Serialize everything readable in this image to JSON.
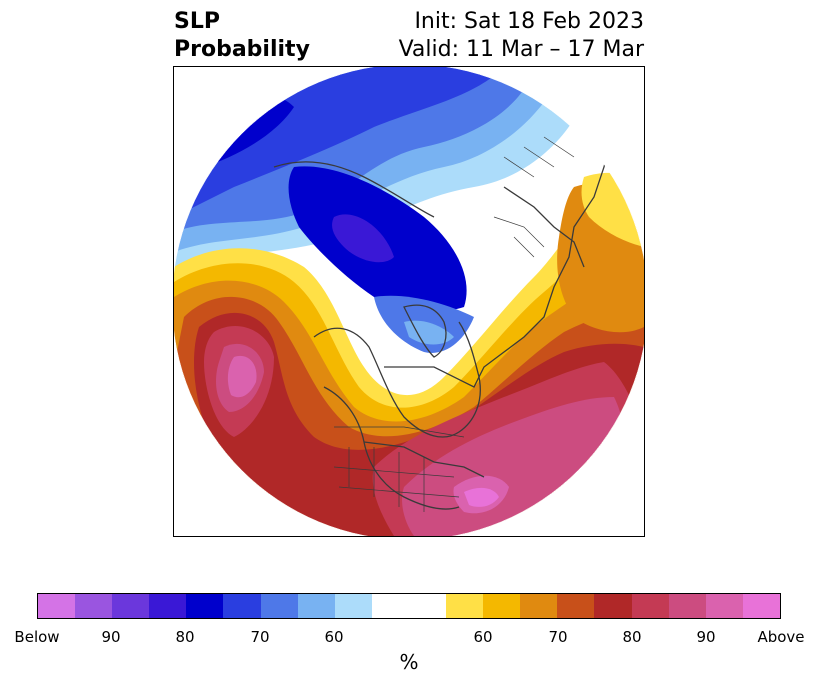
{
  "header": {
    "title_line1": "SLP",
    "title_line2": "Probability",
    "init_text": "Init: Sat 18 Feb 2023",
    "valid_text": "Valid: 11 Mar – 17 Mar"
  },
  "map": {
    "projection": "north-polar-stereographic",
    "fields": {
      "below_color_scale": [
        "#d473e6",
        "#9a55e0",
        "#6b37dc",
        "#3a18d6",
        "#0000cc",
        "#2a3ee0",
        "#4e78e8",
        "#78b2f2",
        "#acdcfa"
      ],
      "neutral": "#ffffff",
      "above_color_scale": [
        "#ffe046",
        "#f4b800",
        "#e08a10",
        "#c8501a",
        "#b02828",
        "#c43a54",
        "#cc4c80",
        "#da62ae",
        "#e872d8"
      ]
    }
  },
  "colorbar": {
    "unit_label": "%",
    "tick_labels": [
      "Below",
      "90",
      "80",
      "70",
      "60",
      "60",
      "70",
      "80",
      "90",
      "Above"
    ]
  }
}
